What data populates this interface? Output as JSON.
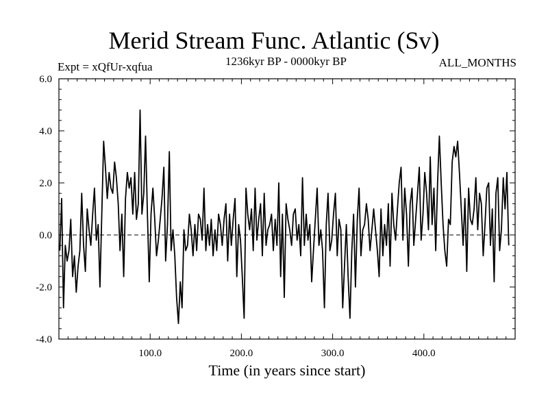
{
  "chart_data": {
    "type": "line",
    "title": "Merid Stream Func. Atlantic (Sv)",
    "subtitle_left": "Expt = xQfUr-xqfua",
    "subtitle_center": "1236kyr BP - 0000kyr BP",
    "subtitle_right": "ALL_MONTHS",
    "xlabel": "Time (in years since start)",
    "ylabel": "",
    "xlim": [
      0,
      500
    ],
    "ylim": [
      -4.0,
      6.0
    ],
    "x_ticks": [
      100,
      200,
      300,
      400
    ],
    "x_tick_labels": [
      "100.0",
      "200.0",
      "300.0",
      "400.0"
    ],
    "y_ticks": [
      -4,
      -2,
      0,
      2,
      4,
      6
    ],
    "y_tick_labels": [
      "-4.0",
      "-2.0",
      "0.0",
      "2.0",
      "4.0",
      "6.0"
    ],
    "reference_line": 0,
    "series": [
      {
        "name": "Merid Stream Func. Atlantic",
        "x_start": 1,
        "x_step": 2,
        "values": [
          -0.6,
          1.4,
          -2.8,
          -0.4,
          -1.0,
          -0.6,
          0.6,
          -1.6,
          -0.8,
          -2.2,
          -1.2,
          -0.6,
          1.6,
          -0.4,
          -1.4,
          1.0,
          0.2,
          -0.4,
          0.8,
          1.8,
          -0.2,
          0.4,
          -2.0,
          0.8,
          3.6,
          2.6,
          1.4,
          2.4,
          1.8,
          1.6,
          2.8,
          2.2,
          1.2,
          -0.6,
          0.8,
          -1.6,
          1.4,
          2.4,
          1.8,
          2.2,
          0.8,
          2.4,
          0.6,
          1.2,
          4.8,
          0.8,
          1.6,
          3.8,
          0.8,
          -1.8,
          0.8,
          1.8,
          0.6,
          -0.8,
          -0.2,
          0.6,
          1.4,
          2.6,
          -1.0,
          0.4,
          3.2,
          -0.6,
          0.2,
          -0.8,
          -2.4,
          -3.4,
          -1.8,
          -2.8,
          0.2,
          -0.6,
          -0.4,
          0.8,
          0.2,
          -0.8,
          0.4,
          -0.6,
          0.8,
          0.6,
          -0.2,
          1.8,
          -0.6,
          0.4,
          -0.4,
          0.6,
          -0.8,
          0.2,
          -0.6,
          0.8,
          0.4,
          -0.4,
          0.6,
          1.2,
          -1.0,
          0.8,
          -0.4,
          0.6,
          1.4,
          -1.6,
          0.4,
          -0.2,
          -1.6,
          -3.2,
          1.8,
          0.8,
          0.2,
          1.0,
          -0.6,
          1.8,
          -0.2,
          0.6,
          1.2,
          -0.8,
          1.6,
          -0.4,
          0.2,
          0.4,
          0.8,
          -0.6,
          0.6,
          -0.4,
          2.0,
          -1.6,
          0.8,
          -2.4,
          1.2,
          0.6,
          0.2,
          -0.4,
          0.8,
          1.0,
          -0.2,
          0.4,
          -0.8,
          2.2,
          -0.4,
          0.8,
          -0.2,
          0.4,
          -1.8,
          -0.6,
          0.6,
          1.8,
          -0.4,
          0.2,
          -0.6,
          -2.8,
          0.4,
          1.6,
          -0.6,
          -0.2,
          0.8,
          1.6,
          -0.8,
          0.6,
          0.2,
          -2.8,
          -1.2,
          0.4,
          -1.6,
          -3.2,
          -0.6,
          0.8,
          -2.0,
          0.6,
          1.8,
          -0.8,
          0.2,
          0.4,
          1.2,
          0.6,
          -0.6,
          0.2,
          1.0,
          0.2,
          -0.6,
          -1.6,
          1.0,
          -0.8,
          0.4,
          -0.4,
          1.2,
          -1.2,
          1.6,
          0.4,
          -0.2,
          1.0,
          2.0,
          2.6,
          -0.2,
          1.8,
          0.8,
          -1.2,
          1.2,
          1.8,
          -0.4,
          0.6,
          1.6,
          2.6,
          -0.2,
          0.8,
          2.4,
          1.6,
          0.2,
          3.0,
          0.4,
          1.8,
          -0.6,
          2.0,
          3.8,
          2.0,
          0.4,
          -0.6,
          -1.2,
          0.6,
          0.4,
          2.8,
          3.4,
          3.0,
          3.6,
          2.4,
          1.0,
          -0.4,
          1.4,
          -1.4,
          1.8,
          0.6,
          0.4,
          1.0,
          2.2,
          0.2,
          1.6,
          1.2,
          -0.8,
          0.4,
          1.8,
          2.0,
          -0.4,
          1.0,
          -1.8,
          1.6,
          2.2,
          -0.6,
          0.2,
          2.2,
          1.0,
          2.4,
          -0.4
        ]
      }
    ]
  }
}
